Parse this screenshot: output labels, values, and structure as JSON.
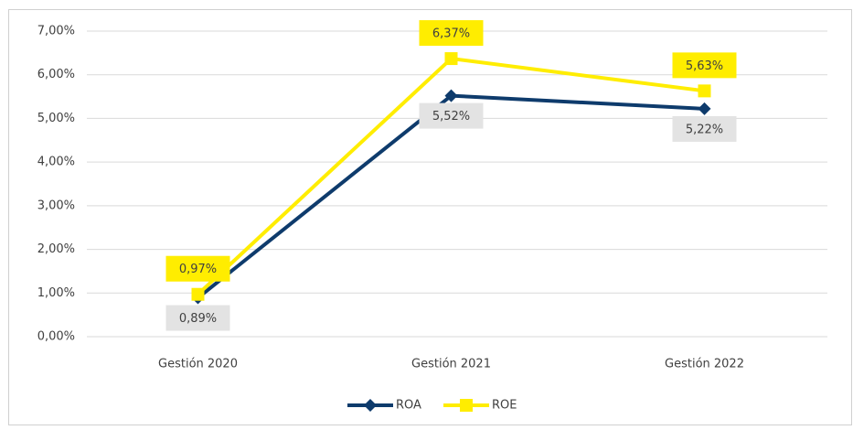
{
  "chart_data": {
    "type": "line",
    "categories": [
      "Gestión 2020",
      "Gestión 2021",
      "Gestión 2022"
    ],
    "series": [
      {
        "name": "ROA",
        "color": "#0e3b6c",
        "marker": "diamond",
        "values": [
          0.89,
          5.52,
          5.22
        ],
        "value_labels": [
          "0,89%",
          "5,52%",
          "5,22%"
        ]
      },
      {
        "name": "ROE",
        "color": "#ffed00",
        "marker": "square",
        "values": [
          0.97,
          6.37,
          5.63
        ],
        "value_labels": [
          "0,97%",
          "6,37%",
          "5,63%"
        ]
      }
    ],
    "ylim": [
      0,
      7
    ],
    "yticks": [
      {
        "value": 0,
        "label": "0,00%"
      },
      {
        "value": 1,
        "label": "1,00%"
      },
      {
        "value": 2,
        "label": "2,00%"
      },
      {
        "value": 3,
        "label": "3,00%"
      },
      {
        "value": 4,
        "label": "4,00%"
      },
      {
        "value": 5,
        "label": "5,00%"
      },
      {
        "value": 6,
        "label": "6,00%"
      },
      {
        "value": 7,
        "label": "7,00%"
      }
    ],
    "grid": true,
    "legend": "bottom"
  }
}
